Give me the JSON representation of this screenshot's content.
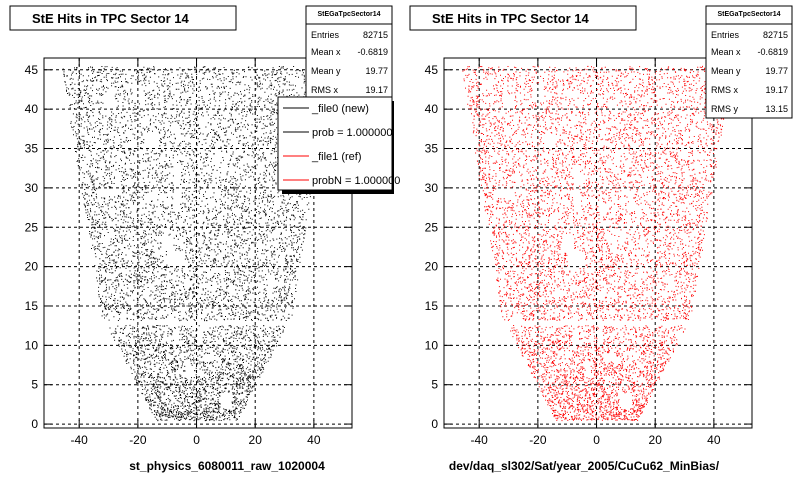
{
  "chart_data": [
    {
      "type": "scatter",
      "title": "StE Hits in TPC Sector 14",
      "xlabel": "st_physics_6080011_raw_1020004",
      "ylabel": "",
      "xlim": [
        -52,
        53
      ],
      "ylim": [
        -0.5,
        46.5
      ],
      "xticks": [
        "-40",
        "-20",
        "0",
        "20",
        "40"
      ],
      "yticks": [
        "0",
        "5",
        "10",
        "15",
        "20",
        "25",
        "30",
        "35",
        "40",
        "45"
      ],
      "grid": true,
      "color": "#000000",
      "stats": {
        "title": "StEGaTpcSector14",
        "rows": [
          {
            "label": "Entries",
            "value": "82715"
          },
          {
            "label": "Mean x",
            "value": "-0.6819"
          },
          {
            "label": "Mean y",
            "value": "19.77"
          },
          {
            "label": "RMS x",
            "value": "19.17"
          }
        ]
      },
      "legend": {
        "position": "top-right",
        "entries": [
          {
            "label": "_file0 (new)",
            "color": "#000000"
          },
          {
            "label": "prob = 1.000000",
            "color": "#000000"
          },
          {
            "label": "_file1 (ref)",
            "color": "#ff0000"
          },
          {
            "label": "probN = 1.000000",
            "color": "#ff0000"
          }
        ]
      }
    },
    {
      "type": "scatter",
      "title": "StE Hits in TPC Sector 14",
      "xlabel": "dev/daq_sl302/Sat/year_2005/CuCu62_MinBias/",
      "ylabel": "",
      "xlim": [
        -52,
        53
      ],
      "ylim": [
        -0.5,
        46.5
      ],
      "xticks": [
        "-40",
        "-20",
        "0",
        "20",
        "40"
      ],
      "yticks": [
        "0",
        "5",
        "10",
        "15",
        "20",
        "25",
        "30",
        "35",
        "40",
        "45"
      ],
      "grid": true,
      "color": "#ff0000",
      "stats": {
        "title": "StEGaTpcSector14",
        "rows": [
          {
            "label": "Entries",
            "value": "82715"
          },
          {
            "label": "Mean x",
            "value": "-0.6819"
          },
          {
            "label": "Mean y",
            "value": "19.77"
          },
          {
            "label": "RMS x",
            "value": "19.17"
          },
          {
            "label": "RMS y",
            "value": "13.15"
          }
        ]
      }
    }
  ]
}
